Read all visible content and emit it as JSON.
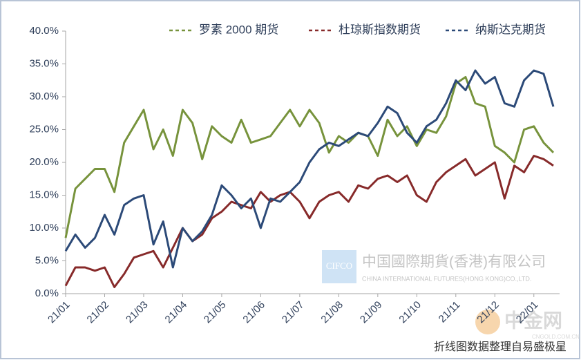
{
  "chart_data": {
    "type": "line",
    "categories": [
      "21/01",
      null,
      null,
      null,
      "21/02",
      null,
      null,
      null,
      "21/03",
      null,
      null,
      null,
      "21/04",
      null,
      null,
      null,
      "21/05",
      null,
      null,
      null,
      "21/06",
      null,
      null,
      null,
      "21/07",
      null,
      null,
      null,
      "21/08",
      null,
      null,
      null,
      "21/09",
      null,
      null,
      null,
      "21/10",
      null,
      null,
      null,
      "21/11",
      null,
      null,
      null,
      "21/12",
      null,
      null,
      null,
      "22/01",
      null,
      null
    ],
    "series": [
      {
        "name": "罗素 2000 期货",
        "color": "#77933c",
        "values": [
          8.5,
          16,
          17.5,
          19,
          19,
          15.5,
          23,
          25.5,
          28,
          22,
          25,
          21,
          28,
          26,
          20.5,
          25.5,
          24,
          23,
          26.5,
          23,
          23.5,
          24,
          26,
          28,
          25.5,
          28,
          26,
          21.5,
          24,
          23,
          24.5,
          24,
          21,
          26.5,
          24,
          25.5,
          22.5,
          25,
          24.5,
          27,
          32,
          33,
          29,
          28.5,
          22.5,
          21.5,
          20,
          25,
          25.5,
          23,
          21.5
        ]
      },
      {
        "name": "杜琼斯指数期货",
        "color": "#872a2a",
        "values": [
          1.2,
          4,
          4,
          3.5,
          4,
          1,
          3,
          5.5,
          6,
          6.5,
          4,
          7,
          10,
          8,
          9,
          11.5,
          12.5,
          14,
          13.5,
          13,
          15.5,
          14,
          15,
          15.5,
          14,
          11.5,
          14,
          15,
          15.5,
          14,
          16.5,
          16,
          17.5,
          18,
          17,
          18,
          15,
          14,
          17,
          18.5,
          19.5,
          20.5,
          18,
          19,
          20,
          14.5,
          19.5,
          18.5,
          21,
          20.5,
          19.5
        ]
      },
      {
        "name": "纳斯达克期货",
        "color": "#2c4a78",
        "values": [
          6.5,
          9,
          7,
          8.5,
          12,
          9,
          13.5,
          14.5,
          15,
          7.5,
          11,
          4,
          10,
          8,
          9.5,
          12,
          16.5,
          15,
          13,
          14.5,
          10,
          14.5,
          14,
          15.5,
          17,
          20,
          22,
          23,
          22.5,
          23.5,
          24.5,
          24,
          26,
          28.5,
          27.5,
          24.5,
          23,
          25.5,
          26.5,
          29,
          32.5,
          31,
          34,
          32,
          33,
          29,
          28.5,
          32.5,
          34,
          33.5,
          28.5
        ]
      }
    ],
    "ylim": [
      0,
      40
    ],
    "yticks": [
      {
        "value": 0,
        "label": "0.0%"
      },
      {
        "value": 5,
        "label": "5.0%"
      },
      {
        "value": 10,
        "label": "10.0%"
      },
      {
        "value": 15,
        "label": "15.0%"
      },
      {
        "value": 20,
        "label": "20.0%"
      },
      {
        "value": 25,
        "label": "25.0%"
      },
      {
        "value": 30,
        "label": "30.0%"
      },
      {
        "value": 35,
        "label": "35.0%"
      },
      {
        "value": 40,
        "label": "40.0%"
      }
    ],
    "legend": "top-right",
    "annotations": [
      "CIFCO",
      "中国國際期貨(香港)有限公司",
      "CHINA INTERNATIONAL FUTURES(HONG KONG)CO.,LTD.",
      "中金网",
      "CNGOLD.COM.CN",
      "折线图数据整理自易盛极星"
    ]
  }
}
